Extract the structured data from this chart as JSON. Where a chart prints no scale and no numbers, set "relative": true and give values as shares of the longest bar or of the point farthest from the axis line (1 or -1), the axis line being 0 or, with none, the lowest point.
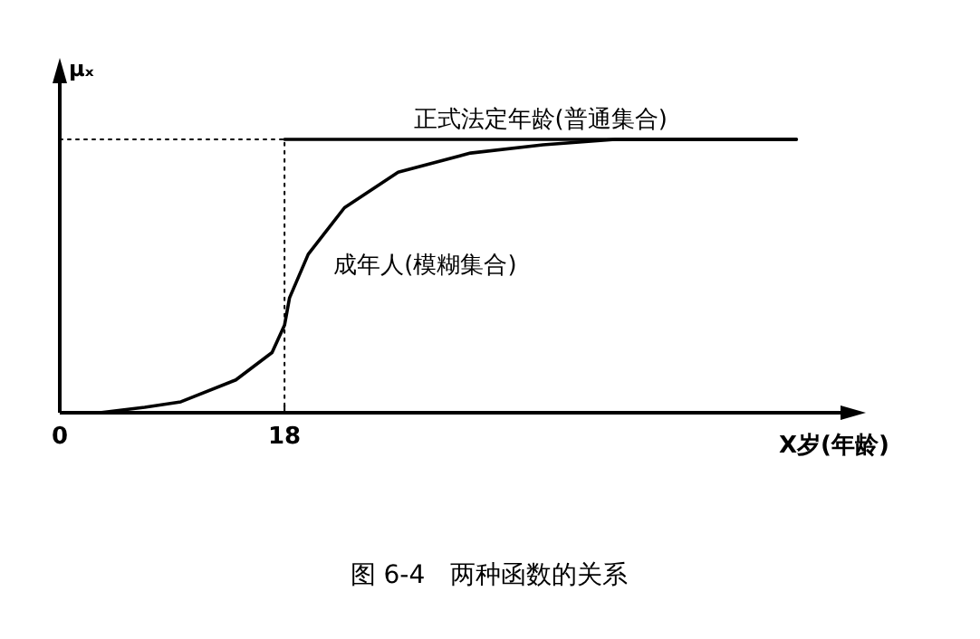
{
  "chart_data": {
    "type": "line",
    "title": "图 6-4　两种函数的关系",
    "ylabel": "μₓ",
    "xlabel": "X岁(年龄)",
    "relative": true,
    "xlim": [
      0,
      63.4
    ],
    "xticks": [
      0,
      18
    ],
    "tick_labels": "x",
    "marker": "none",
    "series": [
      {
        "name": "正式法定年龄(普通集合)",
        "color": "#000000",
        "line_style": "solid",
        "x": [
          18,
          59
        ],
        "values": [
          1,
          1
        ]
      },
      {
        "name": "成年人(模糊集合)",
        "color": "#000000",
        "line_style": "solid",
        "x": [
          3.2,
          6.8,
          9.7,
          14.1,
          17,
          18,
          18.4,
          19.9,
          22.8,
          27.1,
          32.9,
          38.7,
          44.5,
          59
        ],
        "values": [
          0,
          0.02,
          0.04,
          0.12,
          0.22,
          0.32,
          0.42,
          0.58,
          0.75,
          0.88,
          0.95,
          0.98,
          1,
          1
        ]
      },
      {
        "color": "#000000",
        "line_style": "dotted",
        "x": [
          0,
          18,
          18
        ],
        "values": [
          1,
          1,
          0
        ]
      }
    ]
  }
}
